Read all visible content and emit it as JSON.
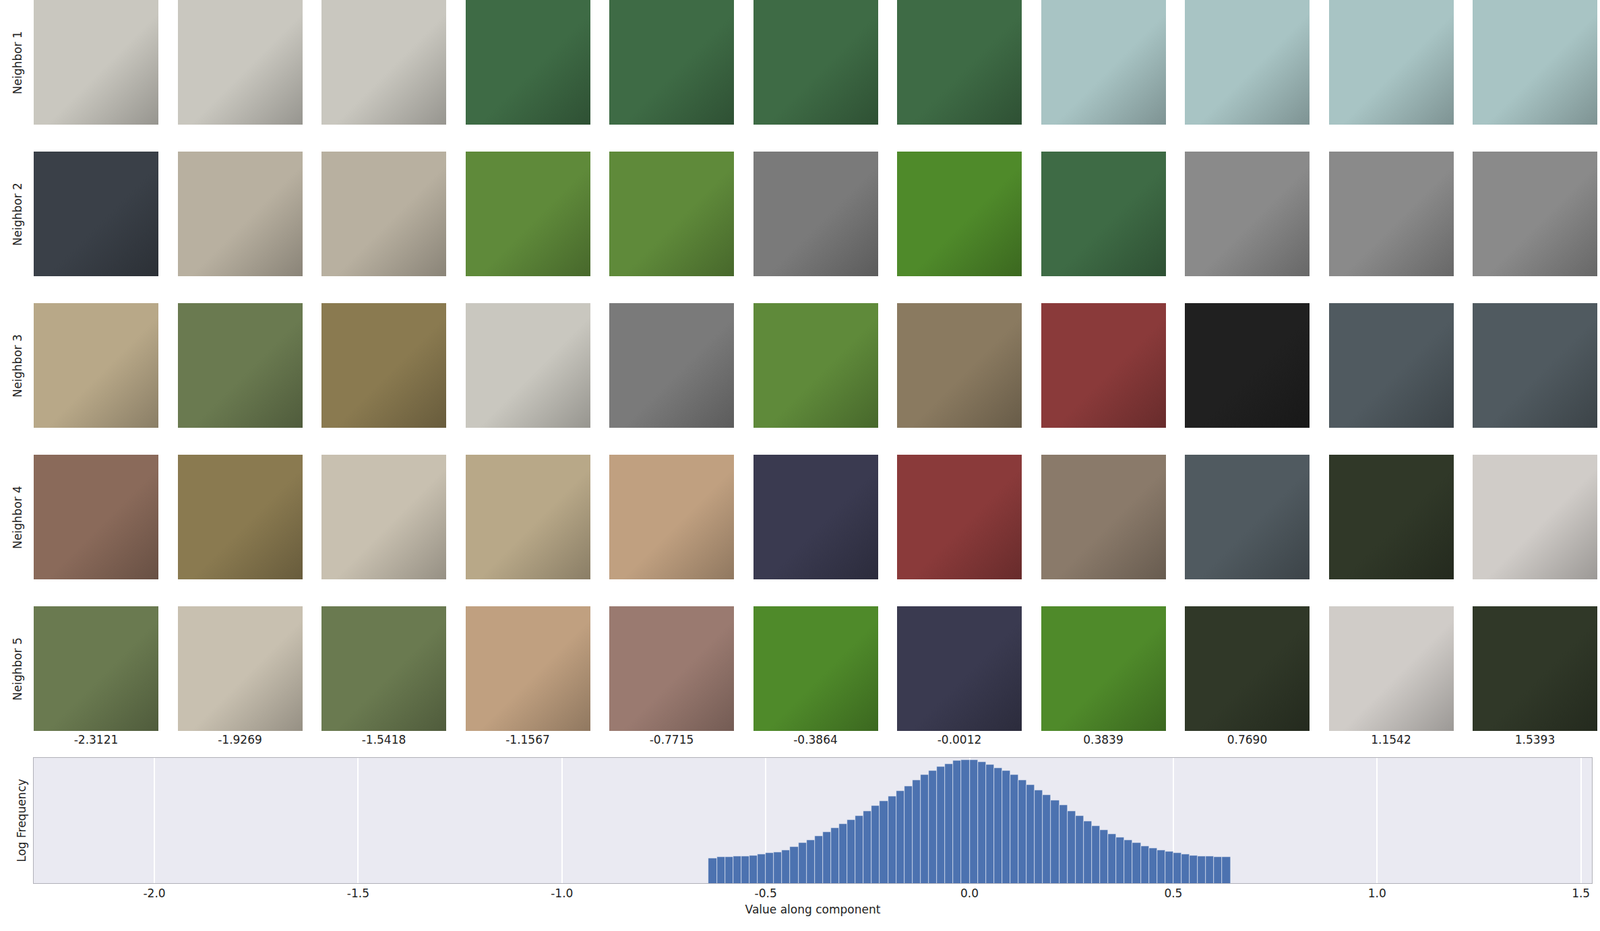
{
  "image_grid": {
    "row_labels": [
      "Neighbor 1",
      "Neighbor 2",
      "Neighbor 3",
      "Neighbor 4",
      "Neighbor 5"
    ],
    "column_labels": [
      "-2.3121",
      "-1.9269",
      "-1.5418",
      "-1.1567",
      "-0.7715",
      "-0.3864",
      "-0.0012",
      "0.3839",
      "0.7690",
      "1.1542",
      "1.5393"
    ],
    "tile_colors": [
      [
        "#c9c7bf",
        "#c9c7bf",
        "#c9c7bf",
        "#3e6b45",
        "#3e6b45",
        "#3e6b45",
        "#3e6b45",
        "#a8c4c4",
        "#a8c4c4",
        "#a8c4c4",
        "#a8c4c4"
      ],
      [
        "#3a4048",
        "#b8b0a0",
        "#b8b0a0",
        "#5f8a3a",
        "#5f8a3a",
        "#7a7a7a",
        "#4f8a2a",
        "#3e6b45",
        "#8a8a8a",
        "#8a8a8a",
        "#8a8a8a"
      ],
      [
        "#b8a888",
        "#6a7a50",
        "#8a7a50",
        "#c9c7bf",
        "#7a7a7a",
        "#5f8a3a",
        "#8a7a60",
        "#8a3a3a",
        "#202020",
        "#505a60",
        "#505a60"
      ],
      [
        "#8a6a5a",
        "#8a7a50",
        "#c8c0b0",
        "#b8a888",
        "#c0a080",
        "#3a3a50",
        "#8a3a3a",
        "#8a7a6a",
        "#505a60",
        "#303828",
        "#d0ccc8"
      ],
      [
        "#6a7a50",
        "#c8c0b0",
        "#6a7a50",
        "#c0a080",
        "#9a7a70",
        "#4f8a2a",
        "#3a3a50",
        "#4f8a2a",
        "#303828",
        "#d0ccc8",
        "#303828"
      ]
    ]
  },
  "chart_data": {
    "type": "histogram",
    "xlabel": "Value along component",
    "ylabel": "Log Frequency",
    "bins": [
      -0.64,
      -0.62,
      -0.6,
      -0.58,
      -0.56,
      -0.54,
      -0.52,
      -0.5,
      -0.48,
      -0.46,
      -0.44,
      -0.42,
      -0.4,
      -0.38,
      -0.36,
      -0.34,
      -0.32,
      -0.3,
      -0.28,
      -0.26,
      -0.24,
      -0.22,
      -0.2,
      -0.18,
      -0.16,
      -0.14,
      -0.12,
      -0.1,
      -0.08,
      -0.06,
      -0.04,
      -0.02,
      0,
      0.02,
      0.04,
      0.06,
      0.08,
      0.1,
      0.12,
      0.14,
      0.16,
      0.18,
      0.2,
      0.22,
      0.24,
      0.26,
      0.28,
      0.3,
      0.32,
      0.34,
      0.36,
      0.38,
      0.4,
      0.42,
      0.44,
      0.46,
      0.48,
      0.5,
      0.52,
      0.54,
      0.56,
      0.58,
      0.6,
      0.62,
      0.64
    ],
    "values": [
      10,
      11,
      11,
      12,
      12,
      13,
      14,
      16,
      17,
      21,
      28,
      40,
      52,
      76,
      110,
      158,
      229,
      331,
      479,
      759,
      1202,
      1905,
      3020,
      4786,
      7586,
      13183,
      20893,
      30200,
      43652,
      57544,
      75858,
      83176,
      83176,
      69183,
      52481,
      39811,
      30200,
      20893,
      13183,
      8318,
      5248,
      3311,
      2089,
      1318,
      759,
      479,
      302,
      191,
      132,
      91,
      69,
      52,
      40,
      30,
      25,
      21,
      18,
      16,
      14,
      13,
      12,
      12,
      11,
      11
    ],
    "color": "#4c72b0",
    "xlim": [
      -2.296,
      1.527
    ],
    "xticks": [
      {
        "value": -2,
        "label": "-2.0"
      },
      {
        "value": -1.5,
        "label": "-1.5"
      },
      {
        "value": -1,
        "label": "-1.0"
      },
      -0.5,
      {
        "value": 0,
        "label": "0.0"
      },
      0.5,
      {
        "value": 1,
        "label": "1.0"
      },
      1.5
    ],
    "ylim": [
      1,
      100000
    ],
    "log": "y",
    "grid": true,
    "tick_labels": "x"
  }
}
